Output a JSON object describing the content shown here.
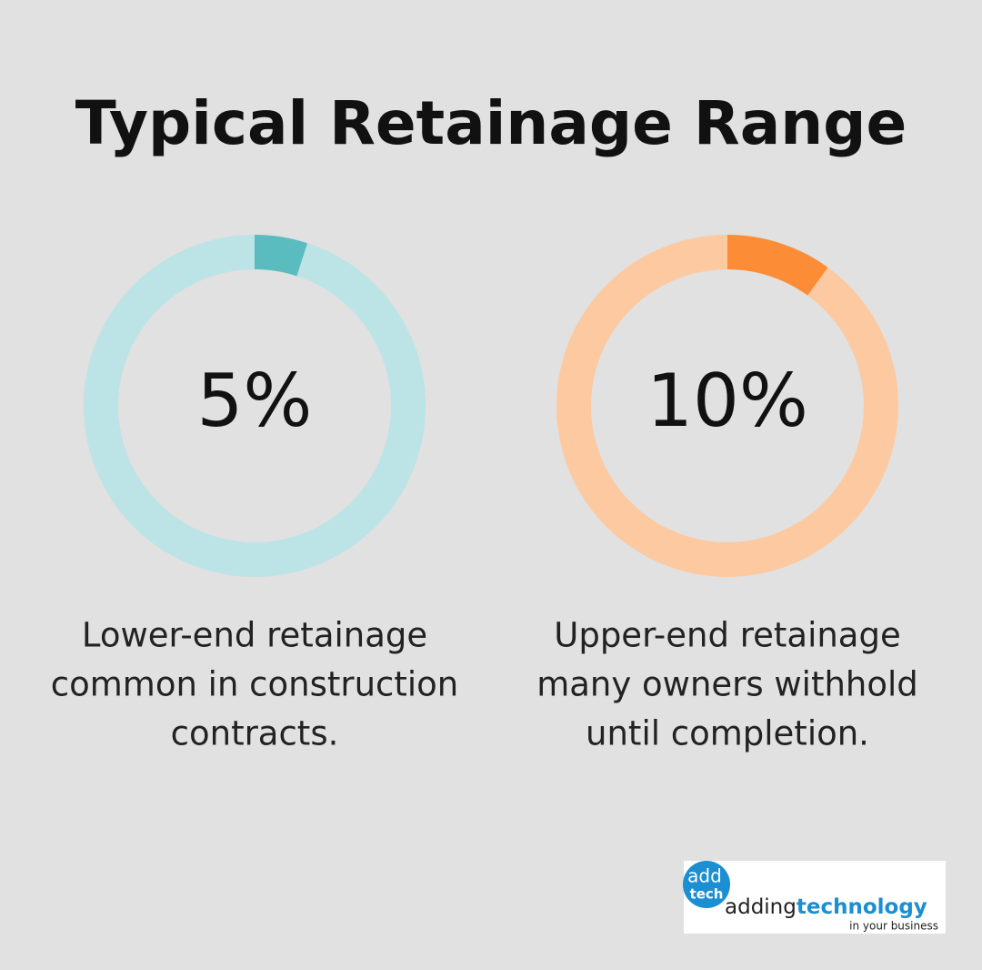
{
  "title": "Typical Retainage Range",
  "chart_data": [
    {
      "type": "donut",
      "values": [
        5
      ],
      "value_labels": [
        "5%"
      ],
      "color": "#5bbcc0",
      "track_color": "#bce3e5",
      "caption": [
        "Lower-end retainage",
        "common in construction",
        "contracts."
      ]
    },
    {
      "type": "donut",
      "values": [
        10
      ],
      "value_labels": [
        "10%"
      ],
      "color": "#fd8c36",
      "track_color": "#fdc9a0",
      "caption": [
        "Upper-end retainage",
        "many owners withhold",
        "until completion."
      ]
    }
  ],
  "logo": {
    "badge_top": "add",
    "badge_bottom": "tech",
    "word_light": "adding",
    "word_bold": "technology",
    "tagline": "in your business"
  }
}
